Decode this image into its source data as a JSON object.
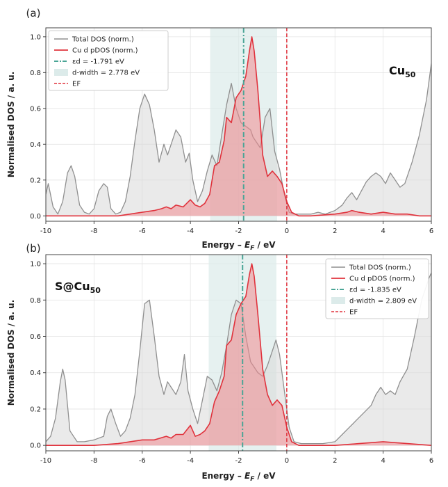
{
  "chart_data": [
    {
      "type": "area",
      "panel_label": "(a)",
      "system_label": "Cu",
      "system_subscript": "50",
      "xlabel": "Energy – E_F / eV",
      "ylabel": "Normalised DOS / a. u.",
      "xlim": [
        -10,
        6
      ],
      "ylim": [
        -0.03,
        1.05
      ],
      "xticks": [
        -10,
        -8,
        -6,
        -4,
        -2,
        0,
        2,
        4,
        6
      ],
      "yticks": [
        0.0,
        0.2,
        0.4,
        0.6,
        0.8,
        1.0
      ],
      "grid": true,
      "legend_position": "upper-left",
      "d_center": -1.791,
      "d_width": 2.778,
      "d_band_range": [
        -3.18,
        -0.4
      ],
      "fermi_level": 0,
      "legend": [
        "Total DOS (norm.)",
        "Cu d pDOS (norm.)",
        "εd = -1.791 eV",
        "d-width = 2.778 eV",
        "EF"
      ],
      "series": [
        {
          "name": "Total DOS (norm.)",
          "x": [
            -10,
            -9.9,
            -9.7,
            -9.5,
            -9.3,
            -9.1,
            -8.95,
            -8.8,
            -8.6,
            -8.4,
            -8.2,
            -8.0,
            -7.8,
            -7.6,
            -7.45,
            -7.3,
            -7.1,
            -6.9,
            -6.7,
            -6.5,
            -6.3,
            -6.1,
            -5.9,
            -5.7,
            -5.5,
            -5.3,
            -5.1,
            -4.95,
            -4.8,
            -4.6,
            -4.4,
            -4.2,
            -4.05,
            -3.9,
            -3.7,
            -3.5,
            -3.3,
            -3.1,
            -2.9,
            -2.7,
            -2.5,
            -2.3,
            -2.1,
            -1.9,
            -1.7,
            -1.5,
            -1.4,
            -1.3,
            -1.1,
            -0.9,
            -0.7,
            -0.5,
            -0.3,
            -0.1,
            0.1,
            0.3,
            0.6,
            1.0,
            1.3,
            1.6,
            2.0,
            2.3,
            2.5,
            2.7,
            2.9,
            3.1,
            3.3,
            3.5,
            3.7,
            3.9,
            4.1,
            4.3,
            4.5,
            4.7,
            4.9,
            5.2,
            5.5,
            5.8,
            6.0
          ],
          "y": [
            0.12,
            0.18,
            0.05,
            0.01,
            0.08,
            0.24,
            0.28,
            0.22,
            0.06,
            0.02,
            0.01,
            0.04,
            0.14,
            0.18,
            0.16,
            0.04,
            0.01,
            0.02,
            0.08,
            0.22,
            0.42,
            0.6,
            0.68,
            0.62,
            0.48,
            0.3,
            0.4,
            0.34,
            0.4,
            0.48,
            0.44,
            0.3,
            0.35,
            0.2,
            0.08,
            0.14,
            0.25,
            0.34,
            0.28,
            0.45,
            0.62,
            0.74,
            0.6,
            0.52,
            0.5,
            0.48,
            0.44,
            0.42,
            0.38,
            0.55,
            0.6,
            0.36,
            0.26,
            0.12,
            0.02,
            0.01,
            0.01,
            0.01,
            0.02,
            0.01,
            0.03,
            0.06,
            0.1,
            0.13,
            0.09,
            0.14,
            0.19,
            0.22,
            0.24,
            0.22,
            0.18,
            0.24,
            0.2,
            0.16,
            0.18,
            0.3,
            0.45,
            0.65,
            0.85
          ]
        },
        {
          "name": "Cu d pDOS (norm.)",
          "x": [
            -10,
            -9.0,
            -8.0,
            -7.0,
            -6.5,
            -6.0,
            -5.5,
            -5.2,
            -5.0,
            -4.8,
            -4.6,
            -4.3,
            -4.0,
            -3.8,
            -3.6,
            -3.4,
            -3.2,
            -3.0,
            -2.8,
            -2.6,
            -2.5,
            -2.3,
            -2.1,
            -1.9,
            -1.7,
            -1.55,
            -1.45,
            -1.35,
            -1.2,
            -1.0,
            -0.8,
            -0.6,
            -0.4,
            -0.2,
            0.0,
            0.2,
            0.5,
            1.0,
            2.0,
            2.5,
            2.7,
            3.0,
            3.5,
            4.0,
            4.5,
            5.0,
            5.5,
            6.0
          ],
          "y": [
            0.0,
            0.0,
            0.0,
            0.0,
            0.01,
            0.02,
            0.03,
            0.04,
            0.05,
            0.04,
            0.06,
            0.05,
            0.09,
            0.06,
            0.05,
            0.07,
            0.12,
            0.28,
            0.3,
            0.42,
            0.55,
            0.52,
            0.66,
            0.7,
            0.78,
            0.92,
            1.0,
            0.92,
            0.7,
            0.34,
            0.22,
            0.25,
            0.22,
            0.18,
            0.08,
            0.02,
            0.0,
            0.0,
            0.01,
            0.02,
            0.03,
            0.02,
            0.01,
            0.02,
            0.01,
            0.01,
            0.0,
            0.0
          ]
        }
      ]
    },
    {
      "type": "area",
      "panel_label": "(b)",
      "system_label": "S@Cu",
      "system_subscript": "50",
      "xlabel": "Energy – E_F / eV",
      "ylabel": "Normalised DOS / a. u.",
      "xlim": [
        -10,
        6
      ],
      "ylim": [
        -0.03,
        1.05
      ],
      "xticks": [
        -10,
        -8,
        -6,
        -4,
        -2,
        0,
        2,
        4,
        6
      ],
      "yticks": [
        0.0,
        0.2,
        0.4,
        0.6,
        0.8,
        1.0
      ],
      "grid": true,
      "legend_position": "upper-right",
      "d_center": -1.835,
      "d_width": 2.809,
      "d_band_range": [
        -3.24,
        -0.43
      ],
      "fermi_level": 0,
      "legend": [
        "Total DOS (norm.)",
        "Cu d pDOS (norm.)",
        "εd = -1.835 eV",
        "d-width = 2.809 eV",
        "EF"
      ],
      "series": [
        {
          "name": "Total DOS (norm.)",
          "x": [
            -10,
            -9.8,
            -9.6,
            -9.4,
            -9.3,
            -9.2,
            -9.0,
            -8.7,
            -8.4,
            -8.0,
            -7.6,
            -7.45,
            -7.3,
            -7.1,
            -6.9,
            -6.7,
            -6.5,
            -6.3,
            -6.1,
            -5.9,
            -5.7,
            -5.5,
            -5.3,
            -5.1,
            -4.95,
            -4.8,
            -4.6,
            -4.4,
            -4.25,
            -4.1,
            -3.9,
            -3.7,
            -3.5,
            -3.3,
            -3.1,
            -2.9,
            -2.7,
            -2.5,
            -2.3,
            -2.1,
            -1.9,
            -1.7,
            -1.5,
            -1.4,
            -1.2,
            -1.0,
            -0.8,
            -0.6,
            -0.45,
            -0.3,
            -0.1,
            0.1,
            0.3,
            0.6,
            1.0,
            1.5,
            2.0,
            2.3,
            2.6,
            2.9,
            3.2,
            3.5,
            3.7,
            3.9,
            4.1,
            4.3,
            4.5,
            4.7,
            5.0,
            5.3,
            5.6,
            5.9,
            6.0
          ],
          "y": [
            0.02,
            0.05,
            0.15,
            0.35,
            0.42,
            0.36,
            0.08,
            0.02,
            0.02,
            0.03,
            0.05,
            0.16,
            0.2,
            0.12,
            0.05,
            0.08,
            0.15,
            0.28,
            0.52,
            0.78,
            0.8,
            0.6,
            0.38,
            0.28,
            0.35,
            0.32,
            0.28,
            0.35,
            0.5,
            0.3,
            0.2,
            0.12,
            0.25,
            0.38,
            0.36,
            0.3,
            0.4,
            0.55,
            0.72,
            0.8,
            0.78,
            0.6,
            0.46,
            0.44,
            0.4,
            0.38,
            0.44,
            0.52,
            0.58,
            0.5,
            0.3,
            0.1,
            0.02,
            0.01,
            0.01,
            0.01,
            0.02,
            0.06,
            0.1,
            0.14,
            0.18,
            0.22,
            0.28,
            0.32,
            0.28,
            0.3,
            0.28,
            0.35,
            0.42,
            0.6,
            0.8,
            0.92,
            0.95
          ]
        },
        {
          "name": "Cu d pDOS (norm.)",
          "x": [
            -10,
            -9.0,
            -8.0,
            -7.0,
            -6.5,
            -6.0,
            -5.5,
            -5.0,
            -4.8,
            -4.6,
            -4.3,
            -4.0,
            -3.8,
            -3.6,
            -3.4,
            -3.2,
            -3.0,
            -2.8,
            -2.6,
            -2.5,
            -2.3,
            -2.1,
            -1.9,
            -1.7,
            -1.55,
            -1.45,
            -1.35,
            -1.2,
            -1.0,
            -0.8,
            -0.6,
            -0.4,
            -0.2,
            0.0,
            0.2,
            0.5,
            1.0,
            2.0,
            3.0,
            4.0,
            5.0,
            6.0
          ],
          "y": [
            0.0,
            0.0,
            0.0,
            0.01,
            0.02,
            0.03,
            0.03,
            0.05,
            0.04,
            0.06,
            0.06,
            0.11,
            0.05,
            0.06,
            0.08,
            0.12,
            0.24,
            0.3,
            0.38,
            0.55,
            0.58,
            0.72,
            0.78,
            0.82,
            0.94,
            1.0,
            0.93,
            0.72,
            0.42,
            0.28,
            0.22,
            0.25,
            0.22,
            0.1,
            0.02,
            0.0,
            0.0,
            0.0,
            0.01,
            0.02,
            0.01,
            0.0
          ]
        }
      ]
    }
  ]
}
